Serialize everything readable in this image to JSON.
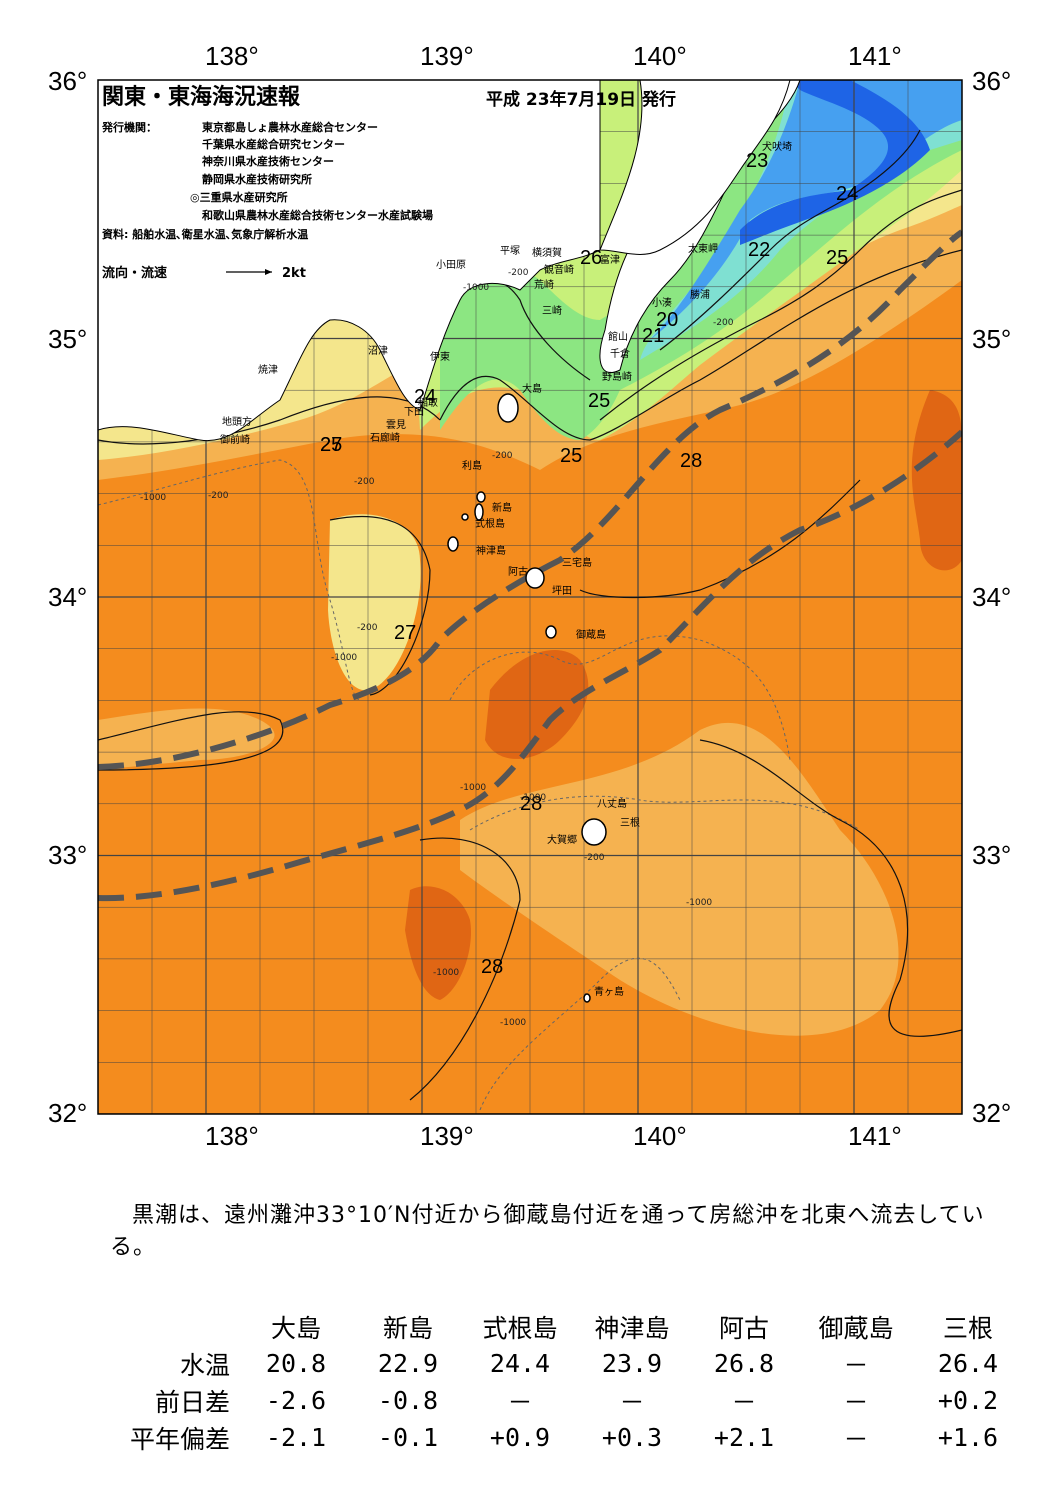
{
  "header": {
    "title": "関東・東海海況速報",
    "date": "平成 23年7月19日 発行",
    "issuer_label": "発行機関：",
    "issuers": [
      "東京都島しょ農林水産総合センター",
      "千葉県水産総合研究センター",
      "神奈川県水産技術センター",
      "静岡県水産技術研究所",
      "◎三重県水産研究所",
      "和歌山県農林水産総合技術センター水産試験場"
    ],
    "source": "資料: 船舶水温､衛星水温､気象庁解析水温",
    "flow_label": "流向・流速",
    "flow_scale": "2kt"
  },
  "axes": {
    "lon_labels": [
      "138°",
      "139°",
      "140°",
      "141°"
    ],
    "lat_labels": [
      "36°",
      "35°",
      "34°",
      "33°",
      "32°"
    ],
    "lon_range": [
      137.5,
      141.5
    ],
    "lat_range": [
      32,
      36
    ]
  },
  "places": [
    "犬吠埼",
    "太東岬",
    "勝浦",
    "小湊",
    "館山",
    "千倉",
    "野島崎",
    "富津",
    "観音崎",
    "横須賀",
    "平塚",
    "小田原",
    "荒崎",
    "三崎",
    "沼津",
    "伊東",
    "焼津",
    "稲取",
    "下田",
    "雲見",
    "石廊崎",
    "地頭方",
    "御前崎",
    "大島",
    "利島",
    "新島",
    "式根島",
    "神津島",
    "三宅島",
    "阿古",
    "坪田",
    "御蔵島",
    "八丈島",
    "三根",
    "大賀郷",
    "青ヶ島"
  ],
  "isotherm_labels": [
    "20",
    "21",
    "22",
    "23",
    "24",
    "24",
    "25",
    "25",
    "25",
    "25",
    "26",
    "27",
    "27",
    "28",
    "28",
    "28"
  ],
  "depth_labels": [
    "-200",
    "-1000"
  ],
  "colors": {
    "land": "#ffffff",
    "t18": "#1e64e6",
    "t20": "#46a0f0",
    "t22": "#7fe0d2",
    "t24": "#8ce682",
    "t25": "#c8f07a",
    "t26": "#f4e68c",
    "t27": "#f5b250",
    "t28": "#f48c1e",
    "t29": "#e06614",
    "kuroshio": "#555555"
  },
  "summary": "黒潮は、遠州灘沖33°10′N付近から御蔵島付近を通って房総沖を北東へ流去している。",
  "table": {
    "headers": [
      "大島",
      "新島",
      "式根島",
      "神津島",
      "阿古",
      "御蔵島",
      "三根"
    ],
    "rows": [
      {
        "label": "水温",
        "values": [
          "20.8",
          "22.9",
          "24.4",
          "23.9",
          "26.8",
          "－",
          "26.4"
        ]
      },
      {
        "label": "前日差",
        "values": [
          "-2.6",
          "-0.8",
          "－",
          "－",
          "－",
          "－",
          "+0.2"
        ]
      },
      {
        "label": "平年偏差",
        "values": [
          "-2.1",
          "-0.1",
          "+0.9",
          "+0.3",
          "+2.1",
          "－",
          "+1.6"
        ]
      }
    ]
  }
}
